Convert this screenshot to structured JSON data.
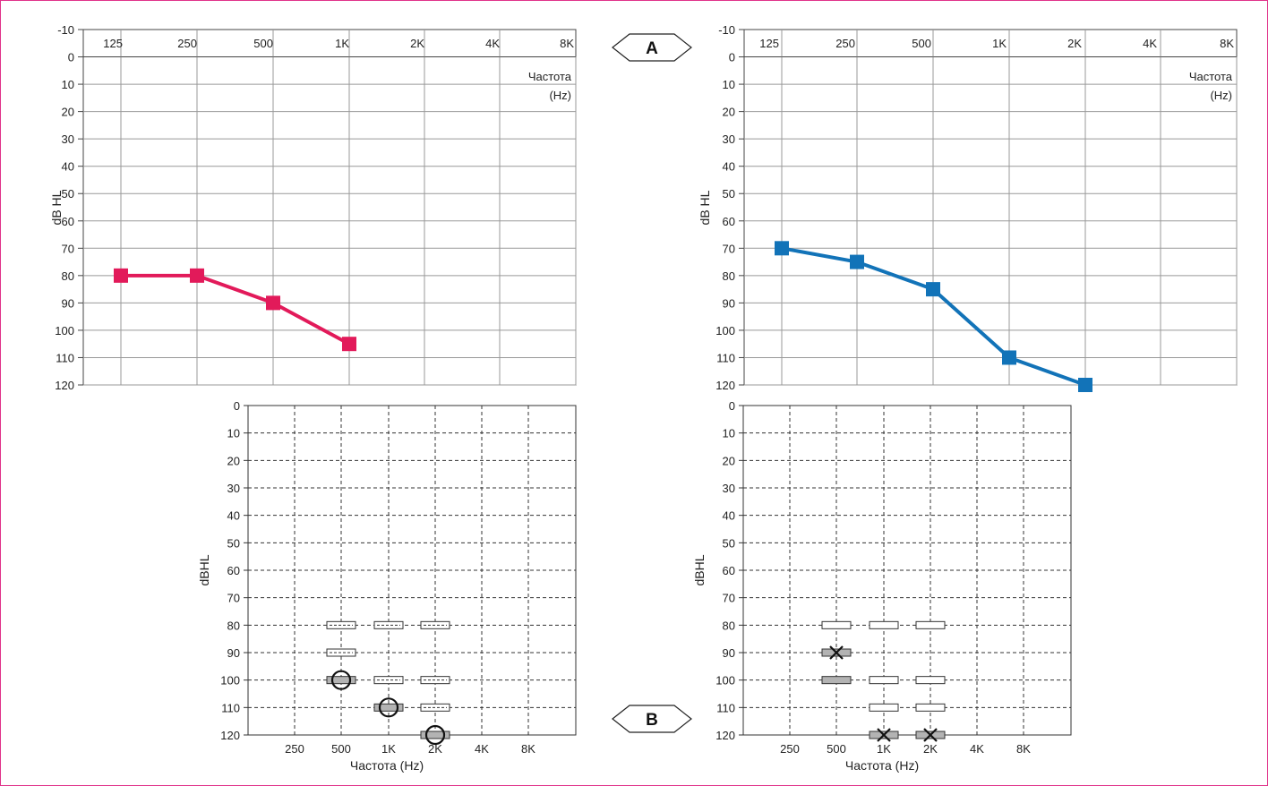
{
  "colors": {
    "right_ear": "#e21a5a",
    "left_ear": "#1273b8",
    "grid": "#999999",
    "frame": "#e0338a",
    "box_fill": "#b3b3b3"
  },
  "labels": {
    "pointer_a": "A",
    "pointer_b": "B"
  },
  "chart_data": [
    {
      "id": "right-audiogram",
      "type": "line",
      "ylabel": "dB HL",
      "xlabel_line1": "Частота",
      "xlabel_line2": "(Hz)",
      "x_ticks": [
        "125",
        "250",
        "500",
        "1K",
        "2K",
        "4K",
        "8K"
      ],
      "y_ticks": [
        "-10",
        "0",
        "10",
        "20",
        "30",
        "40",
        "50",
        "60",
        "70",
        "80",
        "90",
        "100",
        "110",
        "120"
      ],
      "ylim": [
        -10,
        120
      ],
      "y_inverted": true,
      "grid": true,
      "series": [
        {
          "x": [
            "125",
            "250",
            "500",
            "1K"
          ],
          "y": [
            80,
            80,
            90,
            105
          ],
          "marker": "square",
          "color": "#e21a5a"
        }
      ]
    },
    {
      "id": "left-audiogram",
      "type": "line",
      "ylabel": "dB HL",
      "xlabel_line1": "Частота",
      "xlabel_line2": "(Hz)",
      "x_ticks": [
        "125",
        "250",
        "500",
        "1K",
        "2K",
        "4K",
        "8K"
      ],
      "y_ticks": [
        "-10",
        "0",
        "10",
        "20",
        "30",
        "40",
        "50",
        "60",
        "70",
        "80",
        "90",
        "100",
        "110",
        "120"
      ],
      "ylim": [
        -10,
        120
      ],
      "y_inverted": true,
      "grid": true,
      "series": [
        {
          "x": [
            "125",
            "250",
            "500",
            "1K",
            "2K"
          ],
          "y": [
            70,
            75,
            85,
            110,
            120
          ],
          "marker": "square",
          "color": "#1273b8"
        }
      ]
    },
    {
      "id": "right-aided-chart",
      "type": "scatter",
      "ylabel": "dBHL",
      "xlabel": "Частота (Hz)",
      "x_ticks": [
        "250",
        "500",
        "1K",
        "2K",
        "4K",
        "8K"
      ],
      "y_ticks": [
        "0",
        "10",
        "20",
        "30",
        "40",
        "50",
        "60",
        "70",
        "80",
        "90",
        "100",
        "110",
        "120"
      ],
      "ylim": [
        0,
        120
      ],
      "y_inverted": true,
      "grid": "dashed",
      "boxes": [
        {
          "x": "500",
          "y": 80,
          "fill": "white",
          "style": "dashed-center"
        },
        {
          "x": "1K",
          "y": 80,
          "fill": "white",
          "style": "dashed-center"
        },
        {
          "x": "2K",
          "y": 80,
          "fill": "white",
          "style": "dashed-center"
        },
        {
          "x": "500",
          "y": 90,
          "fill": "white",
          "style": "dashed-center"
        },
        {
          "x": "500",
          "y": 100,
          "fill": "gray",
          "style": "solid"
        },
        {
          "x": "1K",
          "y": 100,
          "fill": "white",
          "style": "dashed-center"
        },
        {
          "x": "2K",
          "y": 100,
          "fill": "white",
          "style": "dashed-center"
        },
        {
          "x": "1K",
          "y": 110,
          "fill": "gray",
          "style": "solid"
        },
        {
          "x": "2K",
          "y": 110,
          "fill": "white",
          "style": "dashed-center"
        },
        {
          "x": "2K",
          "y": 120,
          "fill": "gray",
          "style": "solid"
        }
      ],
      "markers": [
        {
          "x": "500",
          "y": 100,
          "symbol": "circle"
        },
        {
          "x": "1K",
          "y": 110,
          "symbol": "circle"
        },
        {
          "x": "2K",
          "y": 120,
          "symbol": "circle"
        }
      ]
    },
    {
      "id": "left-aided-chart",
      "type": "scatter",
      "ylabel": "dBHL",
      "xlabel": "Частота (Hz)",
      "x_ticks": [
        "250",
        "500",
        "1K",
        "2K",
        "4K",
        "8K"
      ],
      "y_ticks": [
        "0",
        "10",
        "20",
        "30",
        "40",
        "50",
        "60",
        "70",
        "80",
        "90",
        "100",
        "110",
        "120"
      ],
      "ylim": [
        0,
        120
      ],
      "y_inverted": true,
      "grid": "dashed",
      "boxes": [
        {
          "x": "500",
          "y": 80,
          "fill": "white",
          "style": "solid"
        },
        {
          "x": "1K",
          "y": 80,
          "fill": "white",
          "style": "solid"
        },
        {
          "x": "2K",
          "y": 80,
          "fill": "white",
          "style": "solid"
        },
        {
          "x": "500",
          "y": 90,
          "fill": "gray",
          "style": "solid"
        },
        {
          "x": "500",
          "y": 100,
          "fill": "gray",
          "style": "solid"
        },
        {
          "x": "1K",
          "y": 100,
          "fill": "white",
          "style": "solid"
        },
        {
          "x": "2K",
          "y": 100,
          "fill": "white",
          "style": "solid"
        },
        {
          "x": "1K",
          "y": 110,
          "fill": "white",
          "style": "solid"
        },
        {
          "x": "2K",
          "y": 110,
          "fill": "white",
          "style": "solid"
        },
        {
          "x": "1K",
          "y": 120,
          "fill": "gray",
          "style": "solid"
        },
        {
          "x": "2K",
          "y": 120,
          "fill": "gray",
          "style": "solid"
        }
      ],
      "markers": [
        {
          "x": "500",
          "y": 90,
          "symbol": "x"
        },
        {
          "x": "1K",
          "y": 120,
          "symbol": "x"
        },
        {
          "x": "2K",
          "y": 120,
          "symbol": "x"
        }
      ]
    }
  ]
}
